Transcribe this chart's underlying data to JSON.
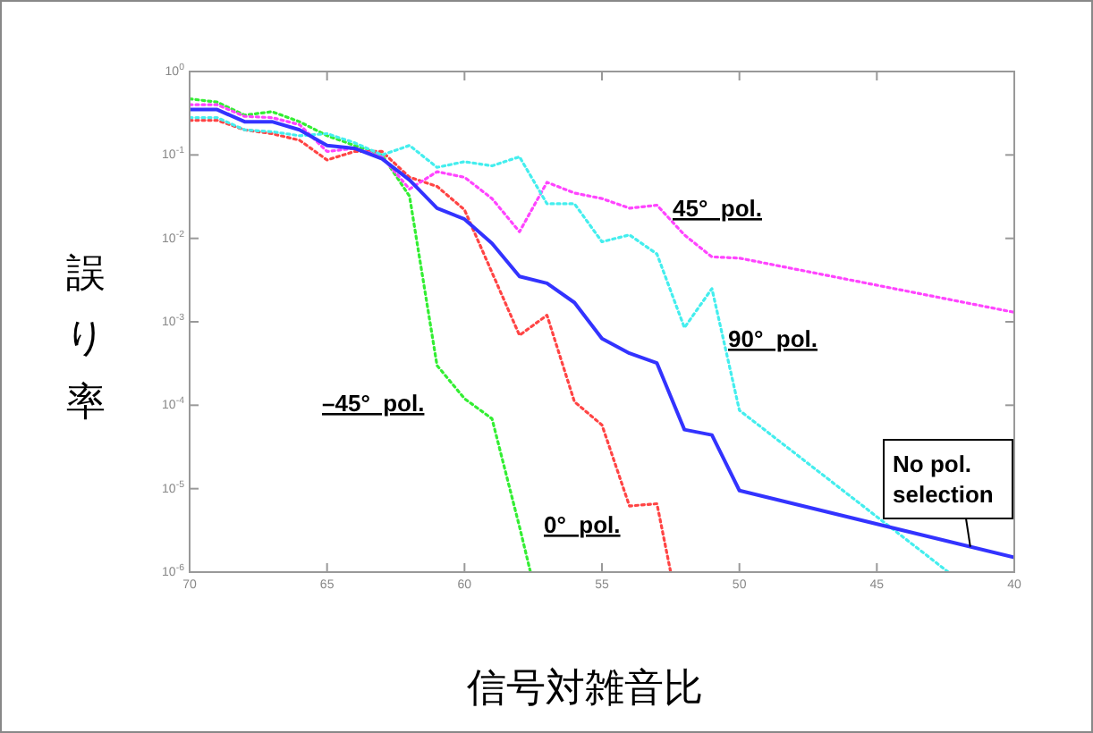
{
  "chart_data": {
    "type": "line",
    "xlabel": "信号対雑音比",
    "ylabel": "誤り率",
    "log": "y",
    "xlim": [
      70,
      40
    ],
    "xticks": [
      70,
      65,
      60,
      55,
      50,
      45,
      40
    ],
    "ylim": [
      1e-06,
      1
    ],
    "yticks": [
      {
        "value": 1,
        "label": "10$^{0}$"
      },
      {
        "value": 0.1,
        "label": "10$^{-1}$"
      },
      {
        "value": 0.01,
        "label": "10$^{-2}$"
      },
      {
        "value": 0.001,
        "label": "10$^{-3}$"
      },
      {
        "value": 0.0001,
        "label": "10$^{-4}$"
      },
      {
        "value": 1e-05,
        "label": "10$^{-5}$"
      },
      {
        "value": 1e-06,
        "label": "10$^{-6}$"
      }
    ],
    "grid": false,
    "marker": "none",
    "series": [
      {
        "name": "–45°  pol.",
        "color": "#33ee33",
        "line_style": "dotted",
        "x": [
          70,
          69,
          68,
          67,
          66,
          65,
          64,
          63,
          62,
          61,
          60,
          59,
          58,
          57.6
        ],
        "values": [
          0.47,
          0.43,
          0.3,
          0.33,
          0.25,
          0.17,
          0.13,
          0.1,
          0.032,
          0.0003,
          0.00012,
          6.9e-05,
          3.5e-06,
          1e-06
        ]
      },
      {
        "name": "0°  pol.",
        "color": "#ff4444",
        "line_style": "dotted",
        "x": [
          70,
          69,
          68,
          67,
          66,
          65,
          64,
          63,
          62,
          61,
          60,
          59,
          58,
          57,
          56,
          55,
          54,
          53,
          52.5
        ],
        "values": [
          0.26,
          0.26,
          0.2,
          0.18,
          0.15,
          0.087,
          0.11,
          0.11,
          0.054,
          0.042,
          0.022,
          0.0039,
          0.00069,
          0.0012,
          0.00011,
          5.8e-05,
          6.2e-06,
          6.6e-06,
          1e-06
        ]
      },
      {
        "name": "45°  pol.",
        "color": "#ff44ff",
        "line_style": "dotted",
        "x": [
          70,
          69,
          68,
          67,
          66,
          65,
          64,
          63,
          62,
          61,
          60,
          59,
          58,
          57,
          56,
          55,
          54,
          53,
          52,
          51,
          50,
          40
        ],
        "values": [
          0.4,
          0.4,
          0.29,
          0.28,
          0.23,
          0.11,
          0.12,
          0.095,
          0.039,
          0.063,
          0.054,
          0.03,
          0.012,
          0.047,
          0.035,
          0.03,
          0.023,
          0.025,
          0.011,
          0.006,
          0.0058,
          0.0013
        ]
      },
      {
        "name": "90°  pol.",
        "color": "#44eeee",
        "line_style": "dotted",
        "x": [
          70,
          69,
          68,
          67,
          66,
          65,
          64,
          63,
          62,
          61,
          60,
          59,
          58,
          57,
          56,
          55,
          54,
          53,
          52,
          51,
          50,
          42.4
        ],
        "values": [
          0.28,
          0.28,
          0.2,
          0.19,
          0.17,
          0.18,
          0.14,
          0.1,
          0.13,
          0.071,
          0.083,
          0.074,
          0.095,
          0.026,
          0.026,
          0.0091,
          0.011,
          0.0065,
          0.00085,
          0.0025,
          8.7e-05,
          1e-06
        ]
      },
      {
        "name": "No pol.\nselection",
        "color": "#3333ff",
        "line_style": "solid",
        "x": [
          70,
          69,
          68,
          67,
          66,
          65,
          64,
          63,
          62,
          61,
          60,
          59,
          58,
          57,
          56,
          55,
          54,
          53,
          52,
          51,
          50,
          40
        ],
        "values": [
          0.35,
          0.35,
          0.25,
          0.25,
          0.2,
          0.13,
          0.12,
          0.09,
          0.05,
          0.023,
          0.017,
          0.0087,
          0.0035,
          0.0029,
          0.0017,
          0.00063,
          0.00042,
          0.00032,
          5.1e-05,
          4.4e-05,
          9.5e-06,
          1.5e-06
        ]
      }
    ]
  }
}
